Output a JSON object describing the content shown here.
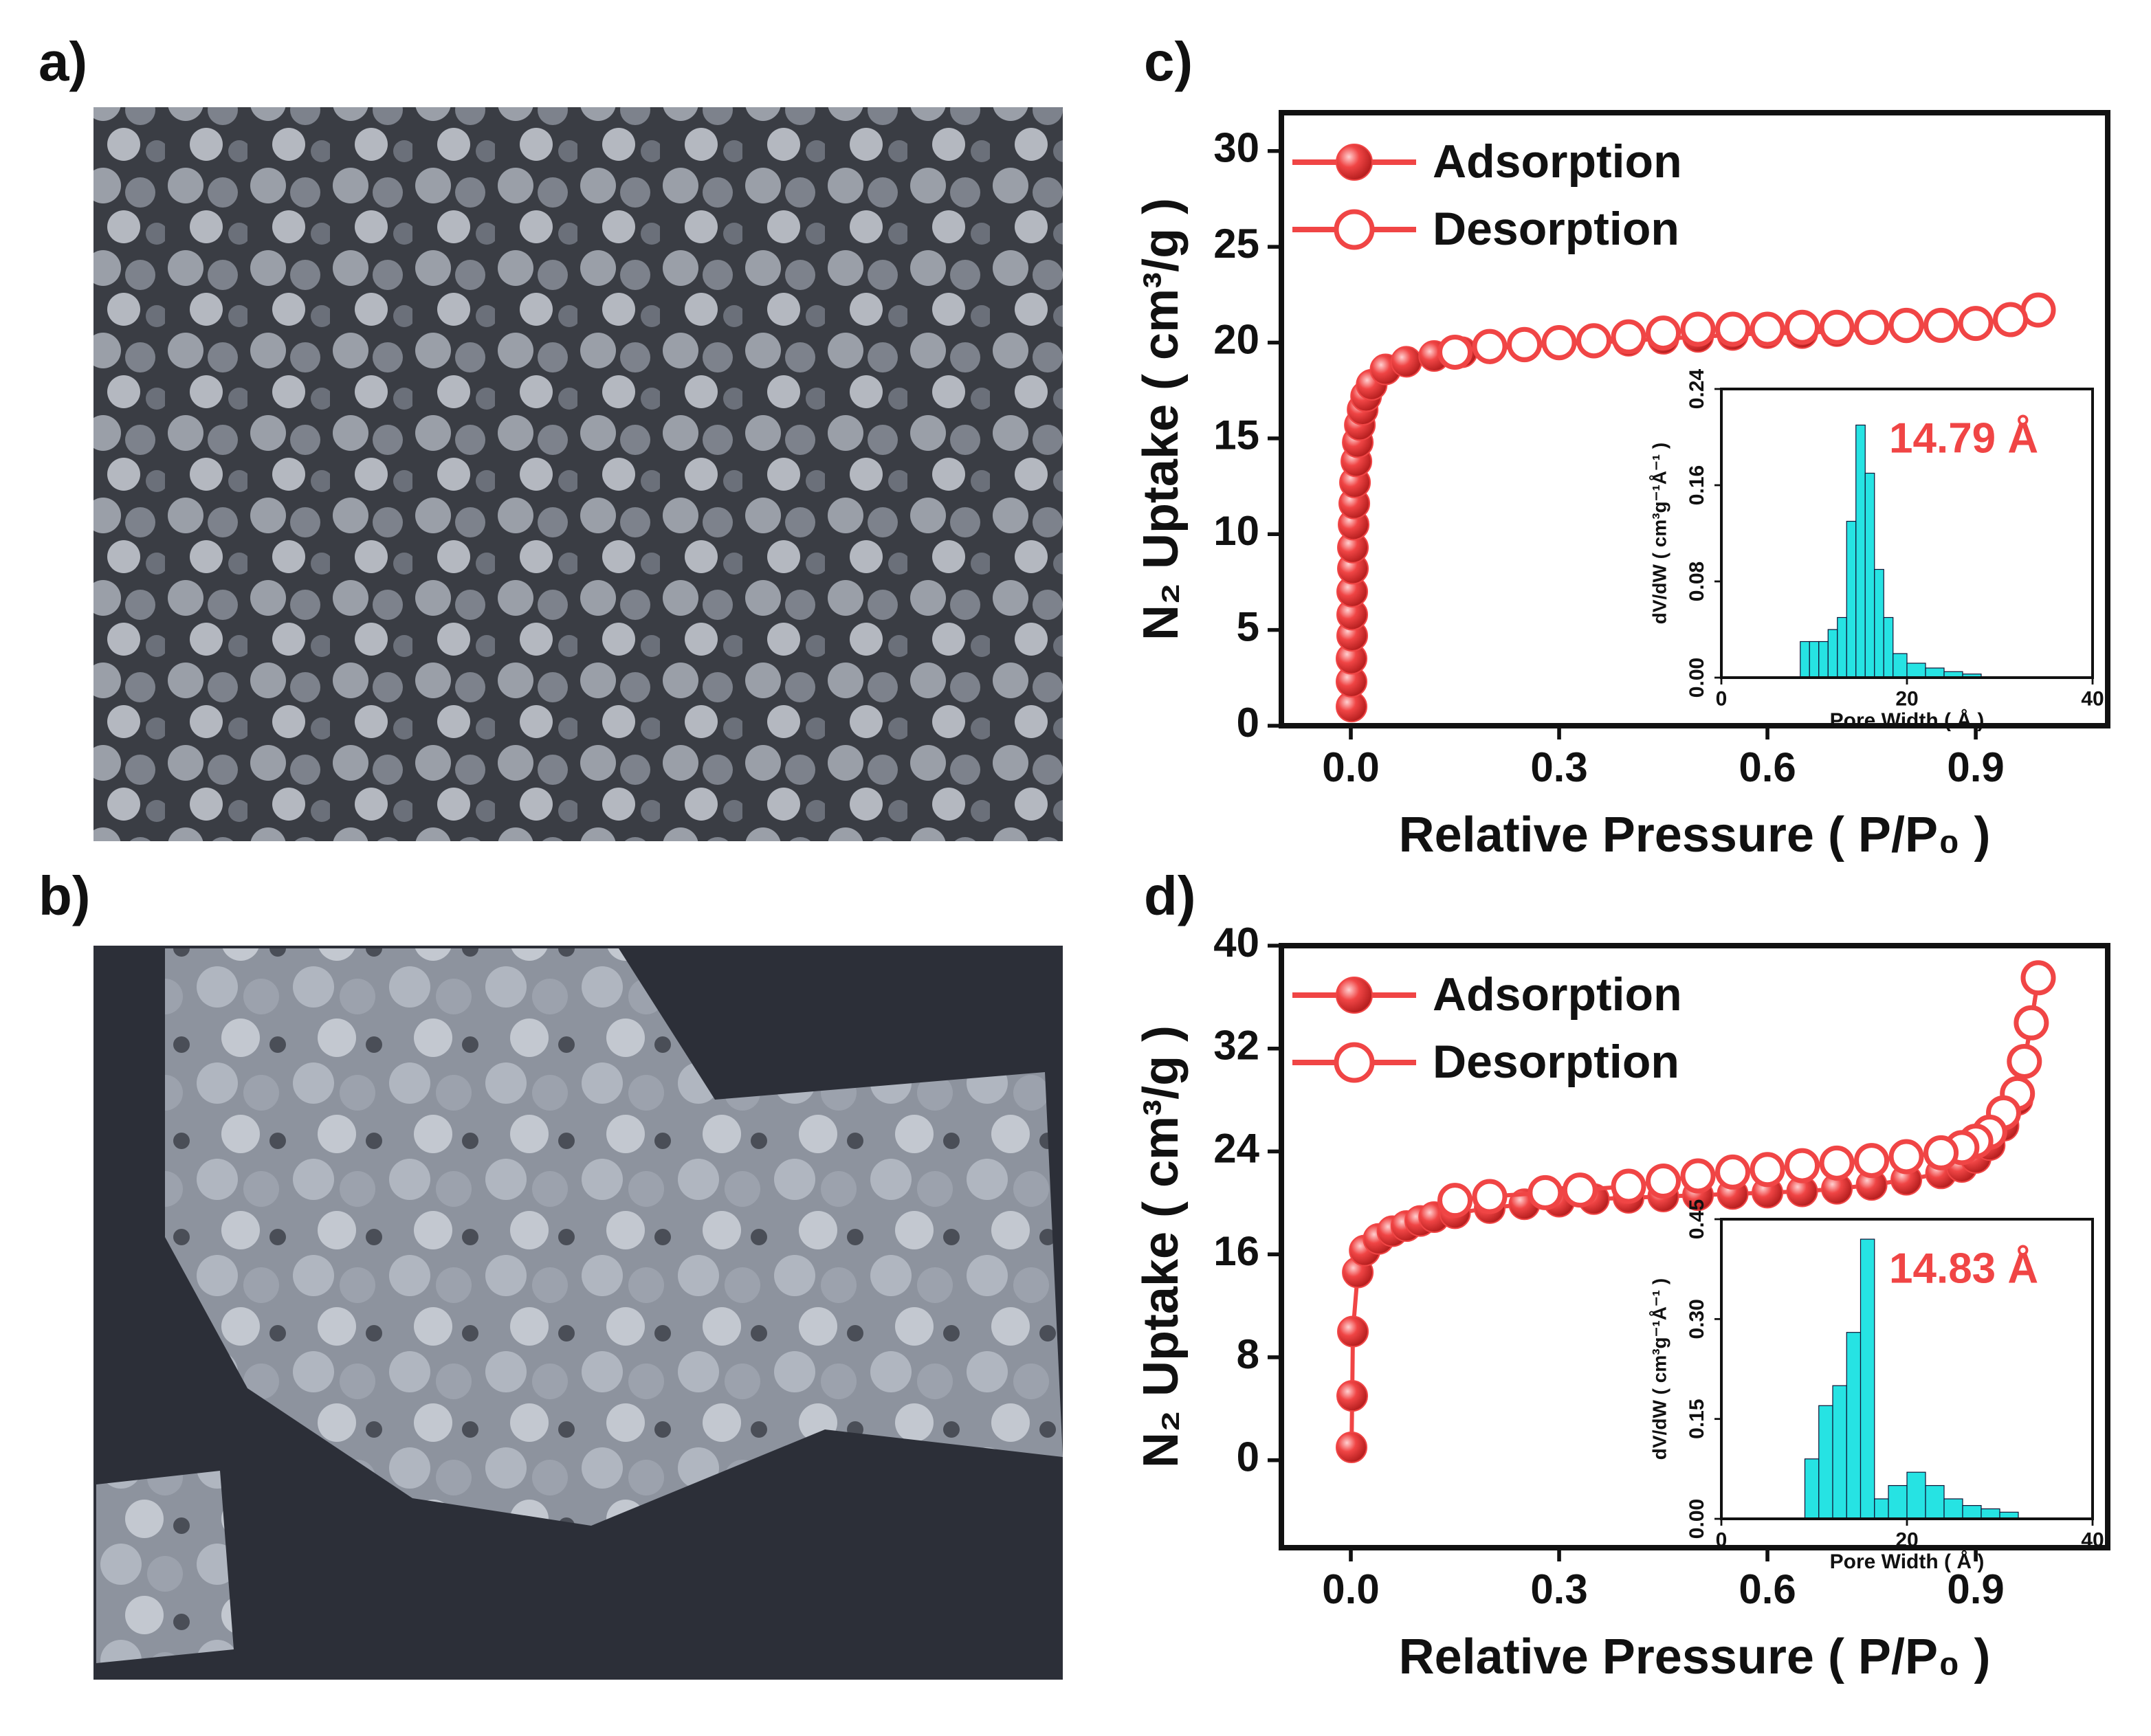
{
  "panel_labels": [
    "a)",
    "b)",
    "c)",
    "d)"
  ],
  "chart_data": [
    {
      "type": "line",
      "xlabel": "Relative Pressure ( P/P₀ )",
      "ylabel": "N₂ Uptake ( cm³/g )",
      "xlim": [
        -0.1,
        1.09
      ],
      "ylim": [
        0,
        32
      ],
      "xticks": [
        {
          "value": 0,
          "label": "0.0"
        },
        0.3,
        0.6,
        0.9
      ],
      "yticks": [
        0,
        5,
        10,
        15,
        20,
        25,
        30
      ],
      "legend": "upper left",
      "series": [
        {
          "name": "Adsorption",
          "color": "#f04545",
          "filled": true,
          "x": [
            0.001,
            0.001,
            0.001,
            0.002,
            0.002,
            0.002,
            0.003,
            0.003,
            0.004,
            0.005,
            0.006,
            0.008,
            0.01,
            0.013,
            0.017,
            0.022,
            0.03,
            0.05,
            0.08,
            0.12,
            0.16,
            0.2,
            0.25,
            0.3,
            0.35,
            0.4,
            0.45,
            0.5,
            0.55,
            0.6,
            0.65,
            0.7,
            0.75,
            0.8,
            0.85,
            0.9,
            0.95,
            0.99
          ],
          "values": [
            1,
            2.3,
            3.5,
            4.7,
            5.8,
            7,
            8.2,
            9.3,
            10.5,
            11.6,
            12.7,
            13.8,
            14.8,
            15.7,
            16.5,
            17.2,
            17.8,
            18.6,
            19.0,
            19.3,
            19.5,
            19.7,
            19.8,
            19.9,
            20.0,
            20.1,
            20.2,
            20.3,
            20.4,
            20.5,
            20.5,
            20.6,
            20.7,
            20.8,
            20.9,
            21.0,
            21.2,
            21.7
          ]
        },
        {
          "name": "Desorption",
          "color": "#f04545",
          "filled": false,
          "x": [
            0.99,
            0.95,
            0.9,
            0.85,
            0.8,
            0.75,
            0.7,
            0.65,
            0.6,
            0.55,
            0.5,
            0.45,
            0.4,
            0.35,
            0.3,
            0.25,
            0.2,
            0.15
          ],
          "values": [
            21.7,
            21.2,
            21.0,
            20.9,
            20.9,
            20.8,
            20.8,
            20.8,
            20.7,
            20.7,
            20.7,
            20.5,
            20.3,
            20.1,
            20.0,
            19.9,
            19.8,
            19.5
          ]
        }
      ]
    },
    {
      "type": "histogram",
      "xlabel": "Pore Width ( Å )",
      "ylabel": "dV/dW ( cm³g⁻¹Å⁻¹ )",
      "annotation": "14.79 Å",
      "xlim": [
        0,
        40
      ],
      "ylim": [
        0,
        0.24
      ],
      "xticks": [
        0,
        20,
        40
      ],
      "yticks": [
        {
          "value": 0,
          "label": "0.00"
        },
        0.08,
        0.16,
        0.24
      ],
      "color": "#00dede",
      "bins": [
        8.5,
        9.5,
        10.5,
        11.5,
        12.5,
        13.5,
        14.5,
        15.5,
        16.5,
        17.5,
        18.5,
        20,
        22,
        24,
        26,
        28
      ],
      "values": [
        0.03,
        0.03,
        0.03,
        0.04,
        0.05,
        0.13,
        0.21,
        0.17,
        0.09,
        0.05,
        0.02,
        0.012,
        0.008,
        0.005,
        0.003
      ]
    },
    {
      "type": "line",
      "xlabel": "Relative Pressure ( P/P₀ )",
      "ylabel": "N₂ Uptake ( cm³/g )",
      "xlim": [
        -0.1,
        1.09
      ],
      "ylim": [
        -6.8,
        40
      ],
      "xticks": [
        {
          "value": 0,
          "label": "0.0"
        },
        0.3,
        0.6,
        0.9
      ],
      "yticks": [
        0,
        8,
        16,
        24,
        32,
        40
      ],
      "legend": "upper left",
      "series": [
        {
          "name": "Adsorption",
          "color": "#f04545",
          "filled": true,
          "x": [
            0.001,
            0.002,
            0.003,
            0.01,
            0.02,
            0.04,
            0.06,
            0.08,
            0.1,
            0.12,
            0.15,
            0.2,
            0.25,
            0.3,
            0.35,
            0.4,
            0.45,
            0.5,
            0.55,
            0.6,
            0.65,
            0.7,
            0.75,
            0.8,
            0.85,
            0.88,
            0.9,
            0.92,
            0.94,
            0.96,
            0.97,
            0.98,
            0.99
          ],
          "values": [
            1,
            5,
            10,
            14.6,
            16.3,
            17.2,
            17.8,
            18.2,
            18.6,
            18.9,
            19.2,
            19.6,
            19.9,
            20.1,
            20.3,
            20.4,
            20.5,
            20.6,
            20.7,
            20.8,
            20.9,
            21.1,
            21.4,
            21.8,
            22.3,
            22.8,
            23.5,
            24.5,
            26,
            28,
            31,
            34,
            37.5
          ]
        },
        {
          "name": "Desorption",
          "color": "#f04545",
          "filled": false,
          "x": [
            0.99,
            0.98,
            0.97,
            0.96,
            0.94,
            0.92,
            0.9,
            0.88,
            0.85,
            0.8,
            0.75,
            0.7,
            0.65,
            0.6,
            0.55,
            0.5,
            0.45,
            0.4,
            0.33,
            0.28,
            0.2,
            0.15
          ],
          "values": [
            37.5,
            34,
            31,
            28.5,
            27,
            25.5,
            24.8,
            24.3,
            23.9,
            23.6,
            23.3,
            23.1,
            22.9,
            22.6,
            22.4,
            22.1,
            21.7,
            21.3,
            21.0,
            20.8,
            20.5,
            20.2
          ]
        }
      ]
    },
    {
      "type": "histogram",
      "xlabel": "Pore Width ( Å )",
      "ylabel": "dV/dW ( cm³g⁻¹Å⁻¹ )",
      "annotation": "14.83 Å",
      "xlim": [
        0,
        40
      ],
      "ylim": [
        0,
        0.45
      ],
      "xticks": [
        0,
        20,
        40
      ],
      "yticks": [
        {
          "value": 0,
          "label": "0.00"
        },
        0.15,
        {
          "value": 0.3,
          "label": "0.30"
        },
        0.45
      ],
      "color": "#00dede",
      "bins": [
        9,
        10.5,
        12,
        13.5,
        15,
        16.5,
        18,
        20,
        22,
        24,
        26,
        28,
        30,
        32
      ],
      "values": [
        0.09,
        0.17,
        0.2,
        0.28,
        0.42,
        0.03,
        0.05,
        0.07,
        0.05,
        0.03,
        0.02,
        0.015,
        0.01
      ]
    }
  ]
}
